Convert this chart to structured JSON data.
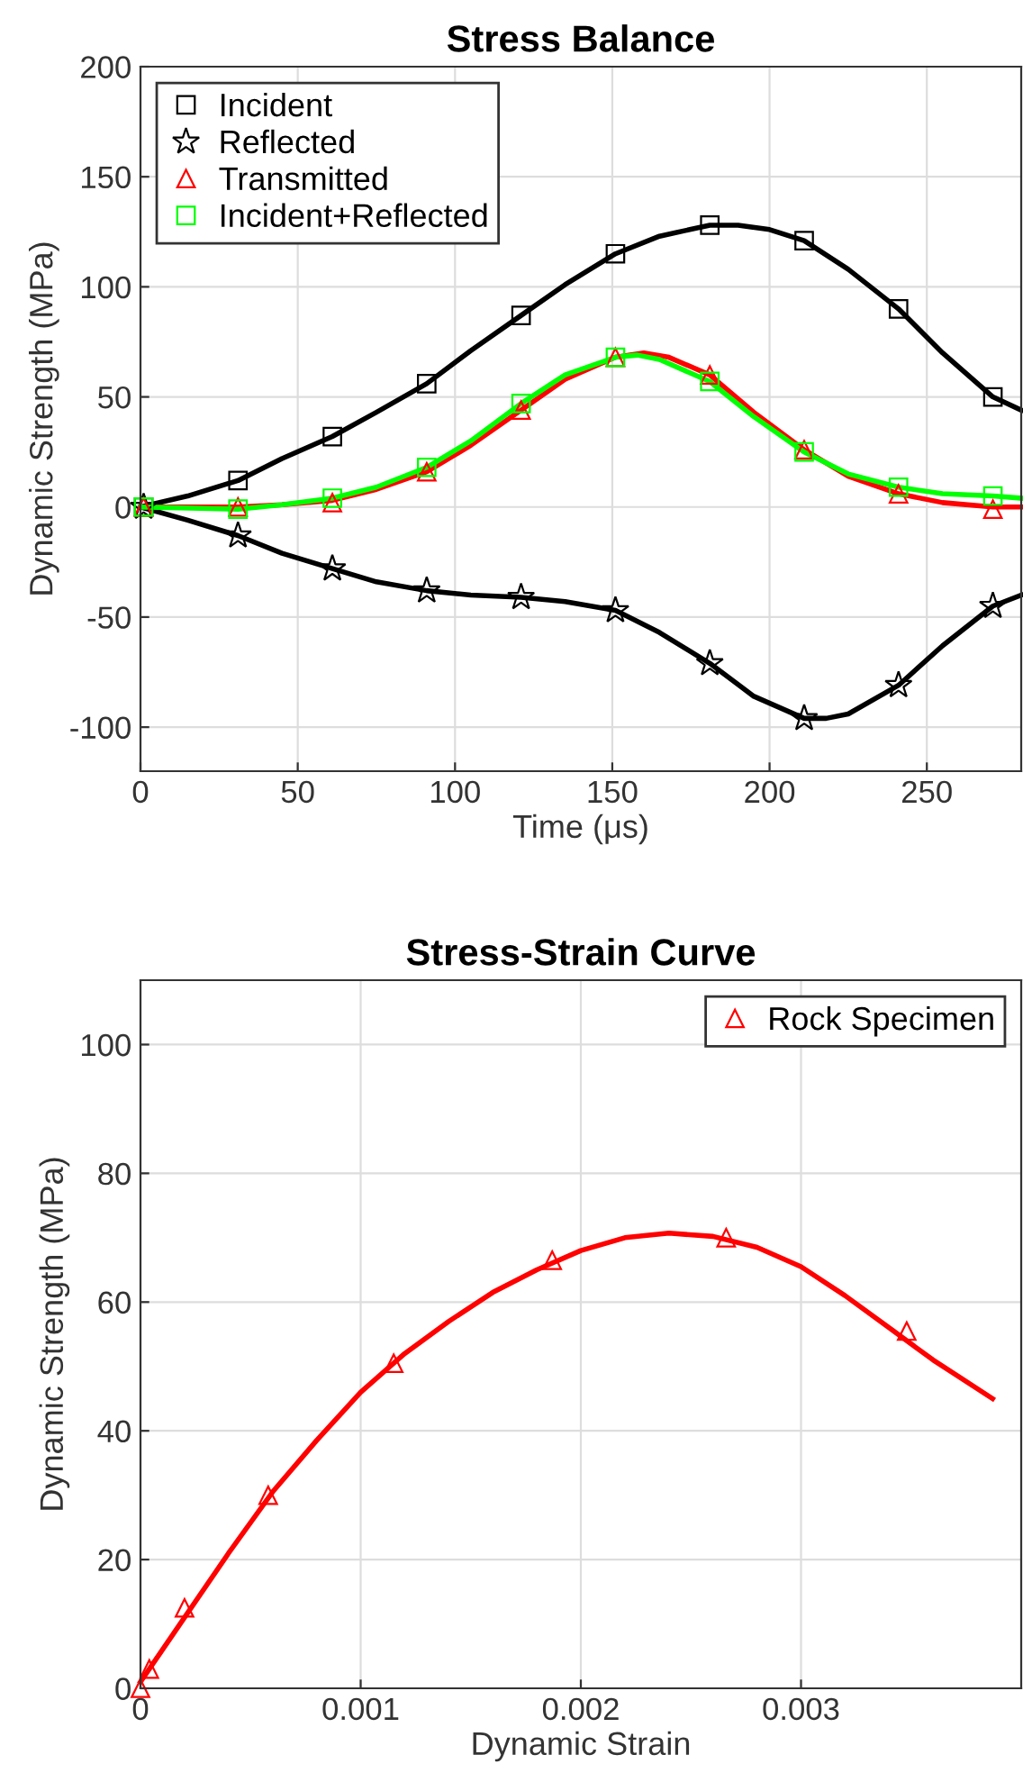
{
  "chart_data": [
    {
      "type": "line",
      "title": "Stress Balance",
      "xlabel": "Time (μs)",
      "ylabel": "Dynamic Strength (MPa)",
      "xlim": [
        0,
        280
      ],
      "ylim": [
        -120,
        200
      ],
      "xticks": [
        0,
        50,
        100,
        150,
        200,
        250
      ],
      "yticks": [
        -100,
        -50,
        0,
        50,
        100,
        150,
        200
      ],
      "grid": true,
      "legend": "top left",
      "series": [
        {
          "color": "#000000",
          "marker": "none",
          "x": [
            0,
            15,
            31,
            45,
            61,
            75,
            91,
            105,
            121,
            135,
            151,
            165,
            181,
            190,
            200,
            211,
            225,
            241,
            255,
            271,
            280
          ],
          "values": [
            0,
            5,
            12,
            22,
            32,
            43,
            56,
            71,
            87,
            101,
            115,
            123,
            128,
            128,
            126,
            121,
            108,
            90,
            70,
            50,
            44
          ]
        },
        {
          "color": "#000000",
          "marker": "none",
          "x": [
            0,
            15,
            31,
            45,
            61,
            75,
            91,
            105,
            121,
            135,
            151,
            165,
            181,
            195,
            211,
            218,
            225,
            241,
            255,
            271,
            280
          ],
          "values": [
            0,
            -6,
            -13,
            -21,
            -28,
            -34,
            -38,
            -40,
            -41,
            -43,
            -47,
            -57,
            -71,
            -86,
            -96,
            -96,
            -94,
            -81,
            -63,
            -45,
            -40
          ]
        },
        {
          "color": "#ff0000",
          "marker": "none",
          "x": [
            0,
            31,
            45,
            61,
            75,
            91,
            105,
            121,
            135,
            151,
            160,
            168,
            181,
            195,
            211,
            225,
            241,
            255,
            271,
            280
          ],
          "values": [
            0,
            0,
            1,
            3,
            8,
            16,
            28,
            44,
            58,
            68,
            70,
            68,
            60,
            43,
            26,
            14,
            6,
            2,
            0,
            0
          ]
        },
        {
          "color": "#00ff00",
          "marker": "none",
          "x": [
            0,
            31,
            45,
            61,
            75,
            91,
            105,
            121,
            135,
            151,
            158,
            165,
            181,
            195,
            211,
            225,
            241,
            255,
            271,
            280
          ],
          "values": [
            0,
            -1,
            1,
            4,
            9,
            18,
            30,
            47,
            60,
            68,
            69,
            67,
            57,
            41,
            25,
            15,
            9,
            6,
            5,
            4
          ]
        },
        {
          "type": "scatter",
          "name": "Incident",
          "color": "#000000",
          "marker": "square",
          "x": [
            1,
            31,
            61,
            91,
            121,
            151,
            181,
            211,
            241,
            271
          ],
          "values": [
            0,
            12,
            32,
            56,
            87,
            115,
            128,
            121,
            90,
            50
          ]
        },
        {
          "type": "scatter",
          "name": "Reflected",
          "color": "#000000",
          "marker": "star",
          "x": [
            1,
            31,
            61,
            91,
            121,
            151,
            181,
            211,
            241,
            271
          ],
          "values": [
            0,
            -13,
            -28,
            -38,
            -41,
            -47,
            -71,
            -96,
            -81,
            -45
          ]
        },
        {
          "type": "scatter",
          "name": "Transmitted",
          "color": "#ff0000",
          "marker": "triangle",
          "x": [
            1,
            31,
            61,
            91,
            121,
            151,
            181,
            211,
            241,
            271
          ],
          "values": [
            0,
            0,
            2,
            16,
            44,
            68,
            60,
            26,
            6,
            -1
          ]
        },
        {
          "type": "scatter",
          "name": "Incident+Reflected",
          "color": "#00ff00",
          "marker": "square",
          "x": [
            1,
            31,
            61,
            91,
            121,
            151,
            181,
            211,
            241,
            271
          ],
          "values": [
            0,
            -1,
            4,
            18,
            47,
            68,
            57,
            25,
            9,
            5
          ]
        }
      ]
    },
    {
      "type": "line",
      "title": "Stress-Strain Curve",
      "xlabel": "Dynamic Strain",
      "ylabel": "Dynamic Strength (MPa)",
      "xlim": [
        0,
        0.004
      ],
      "ylim": [
        0,
        110
      ],
      "xticks": [
        0,
        0.001,
        0.002,
        0.003
      ],
      "yticks": [
        0,
        20,
        40,
        60,
        80,
        100
      ],
      "grid": true,
      "legend": "top right",
      "series": [
        {
          "color": "#ff0000",
          "marker": "none",
          "x": [
            0,
            0.0002,
            0.0004,
            0.0006,
            0.0008,
            0.001,
            0.0012,
            0.0014,
            0.0016,
            0.0018,
            0.002,
            0.0022,
            0.0024,
            0.0026,
            0.0028,
            0.003,
            0.0032,
            0.0034,
            0.0036,
            0.00387
          ],
          "values": [
            1,
            11,
            21,
            30.5,
            38.5,
            46,
            52,
            57,
            61.5,
            65,
            68,
            70,
            70.7,
            70.2,
            68.5,
            65.5,
            61,
            56,
            51,
            45
          ]
        },
        {
          "type": "scatter",
          "name": "Rock Specimen",
          "color": "#ff0000",
          "marker": "triangle",
          "x": [
            0,
            4e-05,
            0.0002,
            0.00058,
            0.00115,
            0.00187,
            0.00266,
            0.00348
          ],
          "values": [
            0,
            3,
            12.5,
            30,
            50.5,
            66.5,
            70,
            55.5
          ]
        }
      ]
    }
  ]
}
